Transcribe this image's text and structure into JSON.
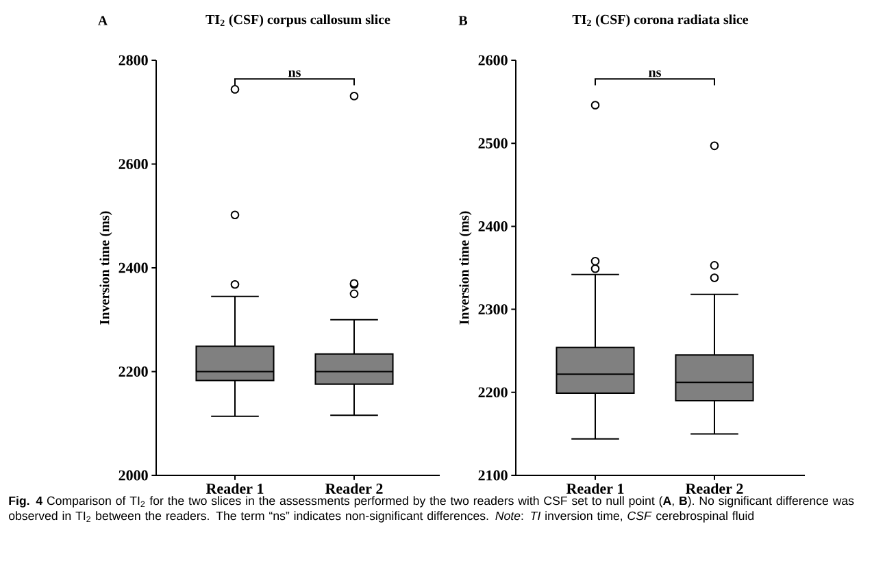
{
  "chart_data": [
    {
      "type": "box",
      "title": "TI$_{2}$ (CSF) corpus callosum slice",
      "ylabel": "Inversion time (ms)",
      "categories": [
        "Reader 1",
        "Reader 2"
      ],
      "color": "#808080",
      "marker": "circle",
      "boxes": [
        {
          "low": 2114,
          "q1": 2183,
          "median": 2200,
          "q3": 2249,
          "high": 2345,
          "outliers": [
            2368,
            2502,
            2744
          ]
        },
        {
          "low": 2116,
          "q1": 2176,
          "median": 2200,
          "q3": 2234,
          "high": 2300,
          "outliers": [
            2350,
            2368,
            2370,
            2731
          ]
        }
      ],
      "ylim": [
        2000,
        2800
      ],
      "yticks": [
        2000,
        2200,
        2400,
        2600,
        2800
      ],
      "annotations": [
        "A",
        "ns",
        "**Fig. 4** Comparison of TI$_{2}$ for the two slices in the assessments performed by the two readers with CSF set to null point (**A**, **B**). No significant difference was observed in TI$_{2}$ between the readers. The term “ns” indicates non-significant differences. *Note*: *TI* inversion time, *CSF* cerebrospinal fluid"
      ]
    },
    {
      "type": "box",
      "title": "TI$_{2}$ (CSF) corona radiata slice",
      "ylabel": "Inversion time (ms)",
      "categories": [
        "Reader 1",
        "Reader 2"
      ],
      "color": "#808080",
      "marker": "circle",
      "boxes": [
        {
          "low": 2144,
          "q1": 2199,
          "median": 2222,
          "q3": 2254,
          "high": 2342,
          "outliers": [
            2349,
            2358,
            2546
          ]
        },
        {
          "low": 2150,
          "q1": 2190,
          "median": 2212,
          "q3": 2245,
          "high": 2318,
          "outliers": [
            2338,
            2353,
            2497
          ]
        }
      ],
      "ylim": [
        2100,
        2600
      ],
      "yticks": [
        2100,
        2200,
        2300,
        2400,
        2500,
        2600
      ],
      "annotations": [
        "B",
        "ns"
      ]
    }
  ]
}
